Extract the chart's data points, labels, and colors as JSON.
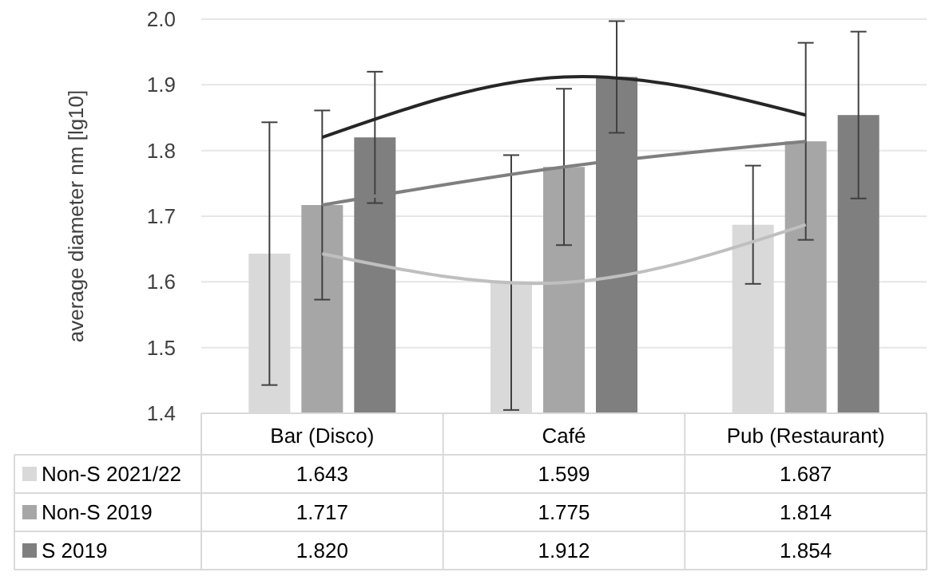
{
  "chart_data": {
    "type": "bar",
    "ylabel": "average diameter nm [lg10]",
    "categories": [
      "Bar (Disco)",
      "Café",
      "Pub (Restaurant)"
    ],
    "ylim": [
      1.4,
      2.0
    ],
    "yticks": [
      {
        "value": 1.4,
        "label": "1.4"
      },
      {
        "value": 1.5,
        "label": "1.5"
      },
      {
        "value": 1.6,
        "label": "1.6"
      },
      {
        "value": 1.7,
        "label": "1.7"
      },
      {
        "value": 1.8,
        "label": "1.8"
      },
      {
        "value": 1.9,
        "label": "1.9"
      },
      {
        "value": 2.0,
        "label": "2.0"
      }
    ],
    "grid": "y",
    "legend": "bottom",
    "series": [
      {
        "name": "Non-S 2021/22",
        "color": "#d9d9d9",
        "values": [
          1.643,
          1.599,
          1.687
        ],
        "value_labels": [
          "1.643",
          "1.599",
          "1.687"
        ],
        "errors": [
          0.2,
          0.194,
          0.09
        ]
      },
      {
        "name": "Non-S 2019",
        "color": "#a6a6a6",
        "values": [
          1.717,
          1.775,
          1.814
        ],
        "value_labels": [
          "1.717",
          "1.775",
          "1.814"
        ],
        "errors": [
          0.144,
          0.119,
          0.15
        ]
      },
      {
        "name": "S 2019",
        "color": "#7f7f7f",
        "values": [
          1.82,
          1.912,
          1.854
        ],
        "value_labels": [
          "1.820",
          "1.912",
          "1.854"
        ],
        "errors": [
          0.1,
          0.085,
          0.127
        ]
      },
      {
        "type": "line",
        "color": "#bfbfbf",
        "values": [
          1.643,
          1.599,
          1.687
        ]
      },
      {
        "type": "line",
        "color": "#7f7f7f",
        "values": [
          1.717,
          1.775,
          1.814
        ]
      },
      {
        "type": "line",
        "color": "#262626",
        "values": [
          1.82,
          1.912,
          1.854
        ]
      }
    ]
  }
}
